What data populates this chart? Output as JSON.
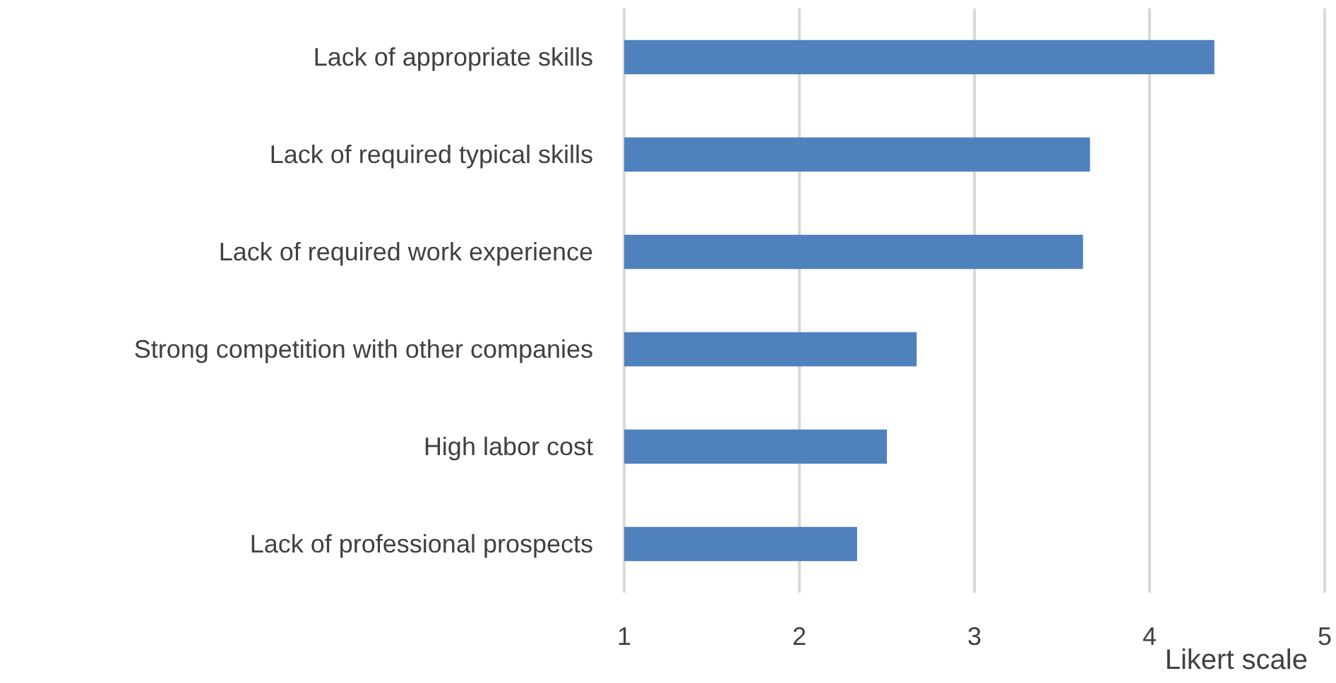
{
  "chart_data": {
    "type": "bar",
    "orientation": "horizontal",
    "xlabel": "Likert scale",
    "categories": [
      "Lack of appropriate skills",
      "Lack of required typical skills",
      "Lack of required work experience",
      "Strong competition with other companies",
      "High labor cost",
      "Lack of professional prospects"
    ],
    "values": [
      4.37,
      3.66,
      3.62,
      2.67,
      2.5,
      2.33
    ],
    "color": "#4f81bd",
    "xlim": [
      1,
      5
    ],
    "xticks": [
      1,
      2,
      3,
      4,
      5
    ],
    "grid": "x"
  }
}
